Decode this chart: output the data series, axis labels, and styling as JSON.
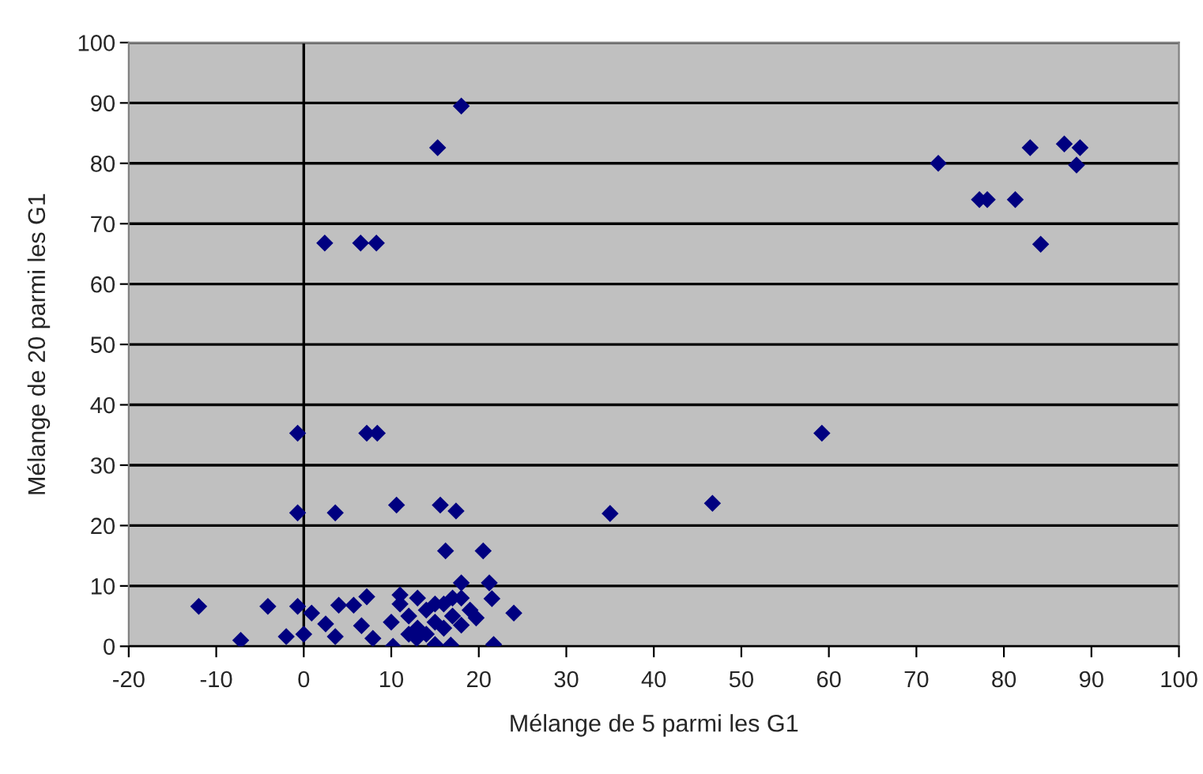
{
  "chart_data": {
    "type": "scatter",
    "xlabel": "Mélange de 5 parmi les G1",
    "ylabel": "Mélange de 20 parmi les G1",
    "xlim": [
      -20,
      100
    ],
    "xticks": [
      -20,
      -10,
      0,
      10,
      20,
      30,
      40,
      50,
      60,
      70,
      80,
      90,
      100
    ],
    "ylim": [
      0,
      100
    ],
    "yticks": [
      0,
      10,
      20,
      30,
      40,
      50,
      60,
      70,
      80,
      90,
      100
    ],
    "grid": "y",
    "marker": "diamond",
    "legend": false,
    "ref_lines": [
      {
        "axis": "x",
        "value": 0,
        "color": "#000000"
      }
    ],
    "series": [
      {
        "color": "#000080",
        "x": [
          72.5,
          83,
          86.9,
          88.7,
          88.3,
          77.2,
          78.1,
          81.3,
          84.2,
          59.2,
          46.7,
          35,
          18,
          15.3,
          2.4,
          6.5,
          8.3,
          -0.7,
          7.2,
          8.4,
          -0.7,
          3.6,
          10.6,
          15.6,
          17.4,
          16.2,
          20.5,
          18,
          21.2,
          -12,
          -4.1,
          -0.7,
          0.9,
          4,
          5.7,
          7.2,
          -7.2,
          -2,
          0,
          2.5,
          3.6,
          6.6,
          7.9,
          10.2,
          21.5,
          19.7,
          24,
          21.7,
          15,
          16.8,
          12.9,
          11,
          12,
          13,
          14,
          15,
          16,
          17,
          18,
          12,
          14,
          10,
          11,
          13,
          15,
          17,
          19,
          16,
          18
        ],
        "values": [
          80,
          82.6,
          83.2,
          82.6,
          79.7,
          74,
          74,
          74,
          66.6,
          35.3,
          23.7,
          22,
          89.5,
          82.6,
          66.8,
          66.8,
          66.8,
          35.3,
          35.3,
          35.3,
          22.1,
          22.1,
          23.4,
          23.4,
          22.4,
          15.8,
          15.8,
          10.5,
          10.5,
          6.6,
          6.6,
          6.6,
          5.5,
          6.8,
          6.8,
          8.2,
          1,
          1.6,
          2,
          3.7,
          1.6,
          3.4,
          1.3,
          0,
          7.9,
          4.7,
          5.5,
          0.3,
          0.3,
          0.2,
          1.3,
          7,
          5,
          8,
          6,
          4,
          7,
          5,
          8,
          2,
          2,
          4,
          8.5,
          3,
          7,
          8,
          6,
          3,
          3.5
        ]
      }
    ]
  }
}
